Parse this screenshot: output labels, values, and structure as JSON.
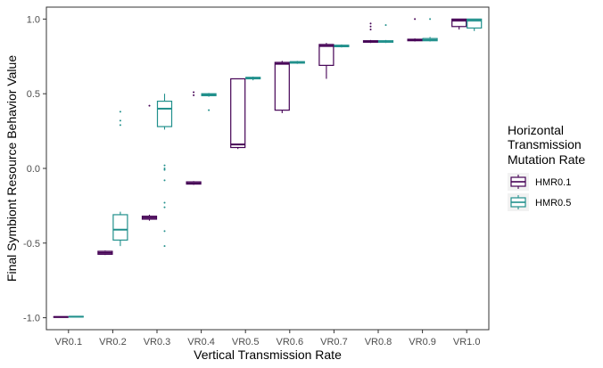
{
  "chart_data": {
    "type": "boxplot",
    "title": "",
    "xlabel": "Vertical Transmission Rate",
    "ylabel": "Final Symbiont Resource Behavior Value",
    "ylim": [
      -1.08,
      1.08
    ],
    "yticks": [
      -1.0,
      -0.5,
      0.0,
      0.5,
      1.0
    ],
    "ytick_labels": [
      "-1.0",
      "-0.5",
      "0.0",
      "0.5",
      "1.0"
    ],
    "categories": [
      "VR0.1",
      "VR0.2",
      "VR0.3",
      "VR0.4",
      "VR0.5",
      "VR0.6",
      "VR0.7",
      "VR0.8",
      "VR0.9",
      "VR1.0"
    ],
    "grid": false,
    "legend": {
      "title_lines": [
        "Horizontal",
        "Transmission",
        "Mutation Rate"
      ],
      "placement": "right"
    },
    "series": [
      {
        "name": "HMR0.1",
        "color": "#440154",
        "boxes": [
          {
            "min": -0.997,
            "q1": -0.997,
            "median": -0.995,
            "q3": -0.993,
            "max": -0.992,
            "outliers": []
          },
          {
            "min": -0.58,
            "q1": -0.575,
            "median": -0.565,
            "q3": -0.555,
            "max": -0.55,
            "outliers": []
          },
          {
            "min": -0.35,
            "q1": -0.34,
            "median": -0.33,
            "q3": -0.32,
            "max": -0.31,
            "outliers": [
              0.42
            ]
          },
          {
            "min": -0.11,
            "q1": -0.105,
            "median": -0.1,
            "q3": -0.09,
            "max": -0.085,
            "outliers": [
              0.49,
              0.51
            ]
          },
          {
            "min": 0.13,
            "q1": 0.14,
            "median": 0.16,
            "q3": 0.6,
            "max": 0.6,
            "outliers": []
          },
          {
            "min": 0.37,
            "q1": 0.39,
            "median": 0.7,
            "q3": 0.71,
            "max": 0.72,
            "outliers": []
          },
          {
            "min": 0.6,
            "q1": 0.69,
            "median": 0.82,
            "q3": 0.83,
            "max": 0.84,
            "outliers": []
          },
          {
            "min": 0.84,
            "q1": 0.845,
            "median": 0.85,
            "q3": 0.855,
            "max": 0.86,
            "outliers": [
              0.93,
              0.95,
              0.97
            ]
          },
          {
            "min": 0.85,
            "q1": 0.855,
            "median": 0.86,
            "q3": 0.865,
            "max": 0.87,
            "outliers": [
              1.0
            ]
          },
          {
            "min": 0.93,
            "q1": 0.95,
            "median": 0.99,
            "q3": 1.0,
            "max": 1.0,
            "outliers": []
          }
        ]
      },
      {
        "name": "HMR0.5",
        "color": "#21908C",
        "boxes": [
          {
            "min": -0.995,
            "q1": -0.995,
            "median": -0.993,
            "q3": -0.991,
            "max": -0.99,
            "outliers": []
          },
          {
            "min": -0.52,
            "q1": -0.48,
            "median": -0.41,
            "q3": -0.31,
            "max": -0.29,
            "outliers": [
              0.29,
              0.32,
              0.38
            ]
          },
          {
            "min": 0.26,
            "q1": 0.28,
            "median": 0.4,
            "q3": 0.45,
            "max": 0.5,
            "outliers": [
              -0.52,
              -0.42,
              -0.26,
              -0.23,
              -0.08,
              -0.01,
              0.0,
              0.02
            ]
          },
          {
            "min": 0.48,
            "q1": 0.487,
            "median": 0.495,
            "q3": 0.5,
            "max": 0.505,
            "outliers": [
              0.39
            ]
          },
          {
            "min": 0.59,
            "q1": 0.6,
            "median": 0.605,
            "q3": 0.61,
            "max": 0.615,
            "outliers": []
          },
          {
            "min": 0.7,
            "q1": 0.705,
            "median": 0.71,
            "q3": 0.715,
            "max": 0.72,
            "outliers": []
          },
          {
            "min": 0.81,
            "q1": 0.815,
            "median": 0.82,
            "q3": 0.825,
            "max": 0.83,
            "outliers": []
          },
          {
            "min": 0.84,
            "q1": 0.845,
            "median": 0.85,
            "q3": 0.855,
            "max": 0.86,
            "outliers": [
              0.96
            ]
          },
          {
            "min": 0.85,
            "q1": 0.855,
            "median": 0.86,
            "q3": 0.87,
            "max": 0.88,
            "outliers": [
              1.0
            ]
          },
          {
            "min": 0.92,
            "q1": 0.94,
            "median": 0.99,
            "q3": 1.0,
            "max": 1.0,
            "outliers": []
          }
        ]
      }
    ]
  }
}
